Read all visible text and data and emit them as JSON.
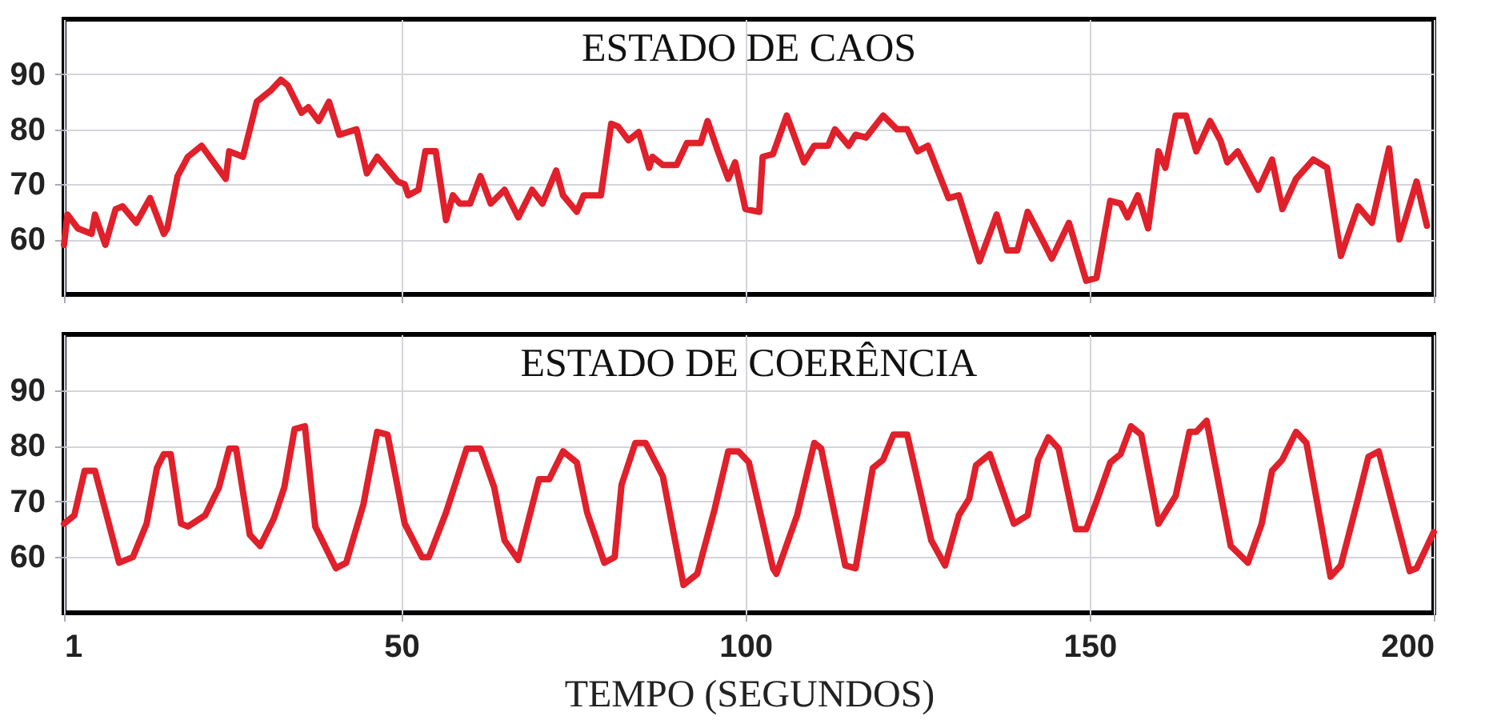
{
  "chart_data": [
    {
      "type": "line",
      "title": "ESTADO DE CAOS",
      "xlim": [
        1,
        200
      ],
      "xticks": [
        {
          "value": 1,
          "label": null
        },
        {
          "value": 50,
          "label": null
        },
        {
          "value": 100,
          "label": null
        },
        {
          "value": 150,
          "label": null
        },
        {
          "value": 200,
          "label": null
        }
      ],
      "ylim": [
        50,
        100
      ],
      "yticks": [
        60,
        70,
        80,
        90
      ],
      "grid": true,
      "tick_labels": "y",
      "series": [
        {
          "color": "#e0202a",
          "x": [
            1,
            1.5,
            3,
            5,
            5.5,
            7,
            8.5,
            9.5,
            11.5,
            13.5,
            15.5,
            16,
            17.5,
            19,
            21,
            24.5,
            25,
            27,
            29,
            31,
            32.5,
            33.5,
            35.5,
            36.5,
            38,
            39.5,
            41,
            43.5,
            45,
            46.5,
            49.5,
            50.5,
            51,
            52.5,
            53.5,
            55,
            56.5,
            57.5,
            58.5,
            60,
            61.5,
            63,
            65,
            67,
            69,
            70.5,
            72.5,
            73.5,
            75.5,
            76.5,
            79,
            80.5,
            81.5,
            83,
            84.5,
            86,
            86.5,
            88,
            90,
            91.5,
            93.5,
            94.5,
            96,
            97.5,
            98.5,
            100,
            102,
            102.5,
            104,
            106,
            108.5,
            110,
            112,
            113,
            115,
            116,
            117.5,
            120,
            122,
            123.5,
            125,
            126.5,
            129.5,
            131,
            134,
            136.5,
            138,
            139.5,
            141,
            143.5,
            144.5,
            147,
            149.5,
            151,
            153,
            154.5,
            155.5,
            157,
            158.5,
            160,
            161,
            162.5,
            164,
            165.5,
            167.5,
            169,
            170,
            171.5,
            174.5,
            176.5,
            178,
            180,
            182.5,
            184.5,
            186.5,
            189,
            191,
            193.5,
            195,
            197.5,
            199
          ],
          "values": [
            59,
            64.5,
            62,
            61,
            64.5,
            59,
            65.5,
            66,
            63,
            67.5,
            61,
            62,
            71.5,
            75,
            77,
            71,
            76,
            75,
            85,
            87,
            89,
            88,
            83,
            84,
            81.5,
            85,
            79,
            80,
            72,
            75,
            70.5,
            70,
            68,
            69,
            76,
            76,
            63.5,
            68,
            66.5,
            66.5,
            71.5,
            66.5,
            69,
            64,
            69,
            66.5,
            72.5,
            68,
            65,
            68,
            68,
            81,
            80.5,
            78,
            79.5,
            73,
            75,
            73.5,
            73.5,
            77.5,
            77.5,
            81.5,
            76,
            71,
            74,
            65.5,
            65,
            75,
            75.5,
            82.5,
            74,
            77,
            77,
            80,
            77,
            79,
            78.5,
            82.5,
            80,
            80,
            76,
            77,
            67.5,
            68,
            56,
            64.5,
            58,
            58,
            65,
            59,
            56.5,
            63,
            52.5,
            53,
            67,
            66.5,
            64,
            68,
            62,
            76,
            73,
            82.5,
            82.5,
            76,
            81.5,
            78,
            74,
            76,
            69,
            74.5,
            65.5,
            71,
            74.5,
            73,
            57,
            66,
            63,
            76.5,
            60,
            70.5,
            62.5
          ]
        }
      ]
    },
    {
      "type": "line",
      "title": "ESTADO DE COERÊNCIA",
      "xlabel": "TEMPO (SEGUNDOS)",
      "xlim": [
        1,
        200
      ],
      "xticks": [
        1,
        50,
        100,
        150,
        200
      ],
      "ylim": [
        50,
        100
      ],
      "yticks": [
        60,
        70,
        80,
        90
      ],
      "grid": true,
      "series": [
        {
          "color": "#e0202a",
          "x": [
            1,
            2.5,
            4,
            5.5,
            9,
            11,
            13,
            14.5,
            15.5,
            16.5,
            18,
            19,
            21.5,
            23.5,
            25,
            26,
            28,
            29.5,
            31.5,
            33,
            34.5,
            36,
            37.5,
            40.5,
            42,
            44.5,
            46.5,
            48,
            50.5,
            53,
            54,
            56.5,
            59.5,
            61.5,
            63.5,
            65,
            67,
            70,
            71.5,
            73.5,
            75.5,
            77,
            79.5,
            81,
            82,
            84,
            85.5,
            88,
            91,
            93,
            95.5,
            97.5,
            99,
            100.5,
            104,
            104.5,
            107.5,
            110,
            111,
            114.5,
            116,
            118.5,
            120,
            121.5,
            123.5,
            127,
            129,
            131,
            132.5,
            133.5,
            135.5,
            139,
            141,
            142.5,
            144,
            145.5,
            148,
            149.5,
            151,
            153,
            154.5,
            156,
            157.5,
            160,
            162.5,
            164.5,
            165.5,
            167,
            170.5,
            173,
            175,
            176.5,
            178,
            180,
            181.5,
            185,
            186.5,
            189,
            190.5,
            192,
            196.5,
            197.5,
            200
          ],
          "values": [
            66,
            67.5,
            75.5,
            75.5,
            59,
            60,
            66,
            76,
            78.5,
            78.5,
            66,
            65.5,
            67.5,
            72.5,
            79.5,
            79.5,
            64,
            62,
            67,
            72.5,
            83,
            83.5,
            65.5,
            58,
            59,
            69.5,
            82.5,
            82,
            66,
            60,
            60,
            68,
            79.5,
            79.5,
            72.5,
            63,
            59.5,
            74,
            74,
            79,
            77,
            68,
            59,
            60,
            73,
            80.5,
            80.5,
            74.5,
            55,
            57,
            68.5,
            79,
            79,
            77,
            58,
            57,
            67.5,
            80.5,
            79.5,
            58.5,
            58,
            76,
            77.5,
            82,
            82,
            63,
            58.5,
            67.5,
            70.5,
            76.5,
            78.5,
            66,
            67.5,
            77.5,
            81.5,
            79.5,
            65,
            65,
            70,
            77,
            78.5,
            83.5,
            82,
            66,
            71,
            82.5,
            82.5,
            84.5,
            62,
            59,
            66,
            75.5,
            77.5,
            82.5,
            80.5,
            56.5,
            58.5,
            70.5,
            78,
            79,
            57.5,
            58,
            64.5
          ]
        }
      ]
    }
  ]
}
